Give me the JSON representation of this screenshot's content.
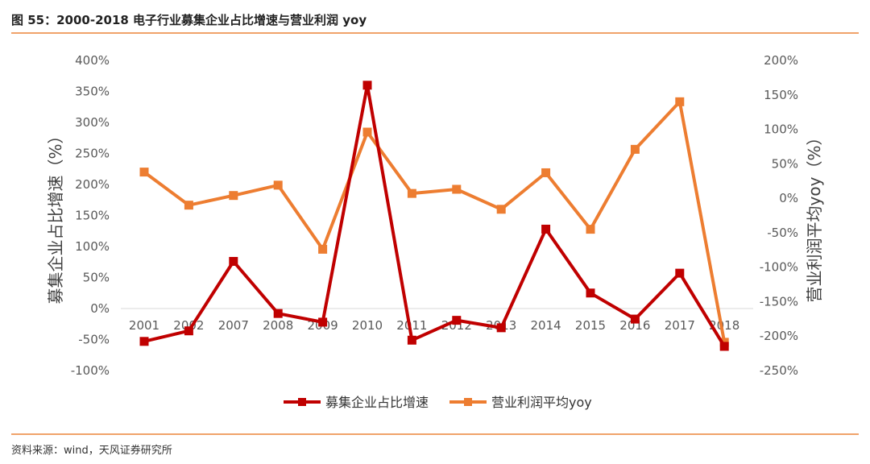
{
  "header": {
    "title": "图 55：2000-2018 电子行业募集企业占比增速与营业利润 yoy"
  },
  "footer": {
    "source": "资料来源：wind，天风证券研究所"
  },
  "chart_data": {
    "type": "line",
    "title": "图 55：2000-2018 电子行业募集企业占比增速与营业利润 yoy",
    "categories": [
      "2001",
      "2002",
      "2007",
      "2008",
      "2009",
      "2010",
      "2011",
      "2012",
      "2013",
      "2014",
      "2015",
      "2016",
      "2017",
      "2018"
    ],
    "ylabel_left": "募集企业占比增速（%）",
    "ylabel_right": "营业利润平均yoy（%）",
    "y_left": {
      "ticks": [
        "400%",
        "350%",
        "300%",
        "250%",
        "200%",
        "150%",
        "100%",
        "50%",
        "0%",
        "-50%",
        "-100%"
      ],
      "ylim": [
        -100,
        400
      ]
    },
    "y_right": {
      "ticks": [
        "200%",
        "150%",
        "100%",
        "50%",
        "0%",
        "-50%",
        "-100%",
        "-150%",
        "-200%",
        "-250%"
      ],
      "ylim": [
        -250,
        200
      ]
    },
    "series": [
      {
        "name": "募集企业占比增速",
        "axis": "left",
        "color": "#c00000",
        "values": [
          -53,
          -36,
          76,
          -8,
          -22,
          360,
          -51,
          -19,
          -31,
          128,
          25,
          -17,
          57,
          -61
        ]
      },
      {
        "name": "营业利润平均yoy",
        "axis": "right",
        "color": "#ed7d31",
        "values": [
          38,
          -10,
          4,
          19,
          -74,
          96,
          7,
          13,
          -16,
          37,
          -45,
          71,
          140,
          -209
        ]
      }
    ],
    "legend": "bottom-center",
    "grid": false
  }
}
